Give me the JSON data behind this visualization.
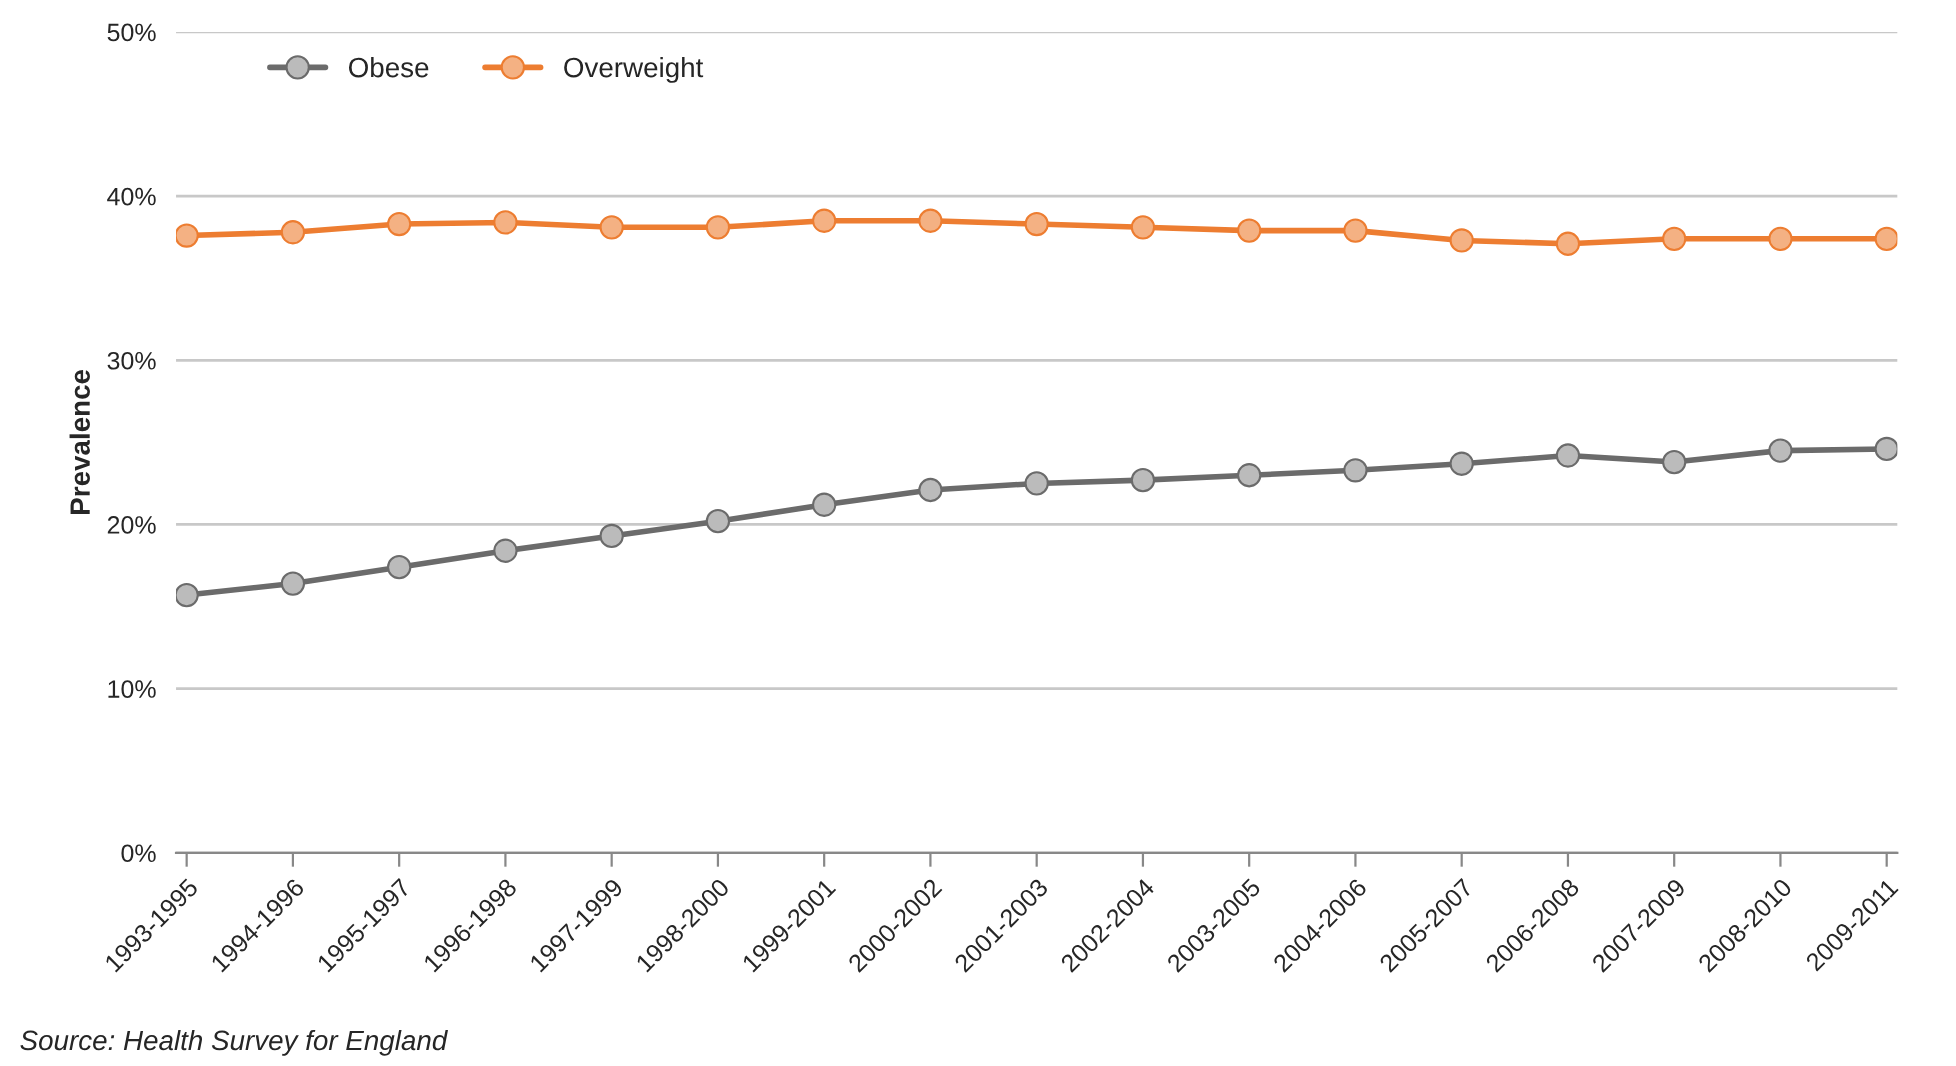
{
  "chart_data": {
    "type": "line",
    "ylabel": "Prevalence",
    "categories": [
      "1993-1995",
      "1994-1996",
      "1995-1997",
      "1996-1998",
      "1997-1999",
      "1998-2000",
      "1999-2001",
      "2000-2002",
      "2001-2003",
      "2002-2004",
      "2003-2005",
      "2004-2006",
      "2005-2007",
      "2006-2008",
      "2007-2009",
      "2008-2010",
      "2009-2011"
    ],
    "series": [
      {
        "name": "Obese",
        "color": "#6b6b6b",
        "values": [
          15.7,
          16.4,
          17.4,
          18.4,
          19.3,
          20.2,
          21.2,
          22.1,
          22.5,
          22.7,
          23.0,
          23.3,
          23.7,
          24.2,
          23.8,
          24.5,
          24.6
        ]
      },
      {
        "name": "Overweight",
        "color": "#ed7d31",
        "values": [
          37.6,
          37.8,
          38.3,
          38.4,
          38.1,
          38.1,
          38.5,
          38.5,
          38.3,
          38.1,
          37.9,
          37.9,
          37.3,
          37.1,
          37.4,
          37.4,
          37.4
        ]
      }
    ],
    "ylim": [
      0,
      50
    ],
    "yticks": [
      {
        "value": 0,
        "label": "0%"
      },
      {
        "value": 10,
        "label": "10%"
      },
      {
        "value": 20,
        "label": "20%"
      },
      {
        "value": 30,
        "label": "30%"
      },
      {
        "value": 40,
        "label": "40%"
      },
      {
        "value": 50,
        "label": "50%"
      }
    ],
    "grid": "y",
    "legend": "top left",
    "marker": "circle",
    "line_style": "solid",
    "annotations": [
      "Source: Health Survey for England"
    ]
  }
}
